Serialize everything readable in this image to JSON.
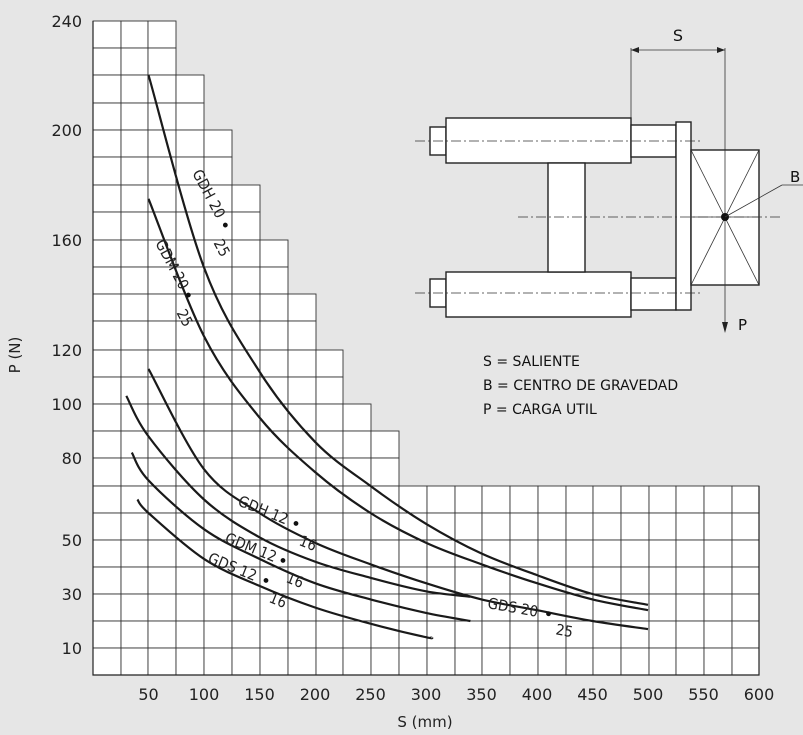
{
  "chart_data": {
    "type": "line",
    "xlabel": "S (mm)",
    "ylabel": "P (N)",
    "x_ticks": [
      "50",
      "100",
      "150",
      "200",
      "250",
      "300",
      "350",
      "400",
      "450",
      "500",
      "550",
      "600"
    ],
    "y_ticks": [
      "10",
      "30",
      "50",
      "80",
      "100",
      "120",
      "160",
      "200",
      "240"
    ],
    "grid": true,
    "series": [
      {
        "name": "GDH 20 • 25",
        "x": [
          50,
          100,
          150,
          200,
          250,
          300,
          350,
          400,
          450,
          500
        ],
        "y": [
          220,
          150,
          112,
          86,
          70,
          56,
          45,
          37,
          30,
          26
        ]
      },
      {
        "name": "GDM 20 • 25",
        "x": [
          50,
          100,
          150,
          200,
          250,
          300,
          350,
          400,
          450,
          500
        ],
        "y": [
          175,
          125,
          95,
          75,
          60,
          49,
          41,
          34,
          28,
          24
        ]
      },
      {
        "name": "GDS 20 • 25",
        "x": [
          50,
          100,
          150,
          200,
          250,
          300,
          350,
          400,
          450,
          500
        ],
        "y": [
          113,
          76,
          60,
          49,
          41,
          34,
          28,
          24,
          20,
          17
        ]
      },
      {
        "name": "GDH 12 • 16",
        "x": [
          30,
          50,
          100,
          150,
          200,
          250,
          300,
          340
        ],
        "y": [
          103,
          88,
          65,
          51,
          42,
          36,
          31,
          29
        ]
      },
      {
        "name": "GDM 12 • 16",
        "x": [
          35,
          50,
          100,
          150,
          200,
          250,
          300,
          340
        ],
        "y": [
          82,
          72,
          54,
          43,
          34,
          28,
          23,
          20
        ]
      },
      {
        "name": "GDS 12 • 16",
        "x": [
          40,
          50,
          100,
          150,
          200,
          250,
          300,
          305
        ],
        "y": [
          65,
          60,
          43,
          33,
          25,
          19,
          14,
          14
        ]
      }
    ],
    "curve_labels": [
      {
        "text": "GDH 20",
        "dot_after": "25"
      },
      {
        "text": "GDM 20",
        "dot_after": "25"
      },
      {
        "text": "GDS 20",
        "dot_after": "25"
      },
      {
        "text": "GDH 12",
        "dot_after": "16"
      },
      {
        "text": "GDM 12",
        "dot_after": "16"
      },
      {
        "text": "GDS 12",
        "dot_after": "16"
      }
    ]
  },
  "diagram": {
    "labels": {
      "s": "S",
      "b": "B",
      "p": "P"
    },
    "legend": [
      "S = SALIENTE",
      "B = CENTRO DE GRAVEDAD",
      "P = CARGA UTIL"
    ]
  }
}
